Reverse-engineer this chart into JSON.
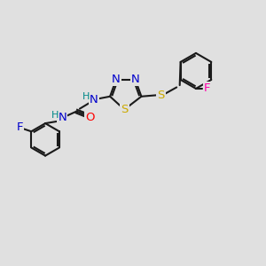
{
  "bg_color": "#e0e0e0",
  "bond_color": "#1a1a1a",
  "bond_width": 1.5,
  "atom_colors": {
    "N": "#0000cc",
    "S": "#ccaa00",
    "O": "#ff0000",
    "F_pink": "#ff00aa",
    "F_left": "#0000cc",
    "H": "#008888",
    "C": "#1a1a1a"
  },
  "font_size_atom": 9.5,
  "font_size_h": 8.0,
  "fig_bg": "#e0e0e0"
}
